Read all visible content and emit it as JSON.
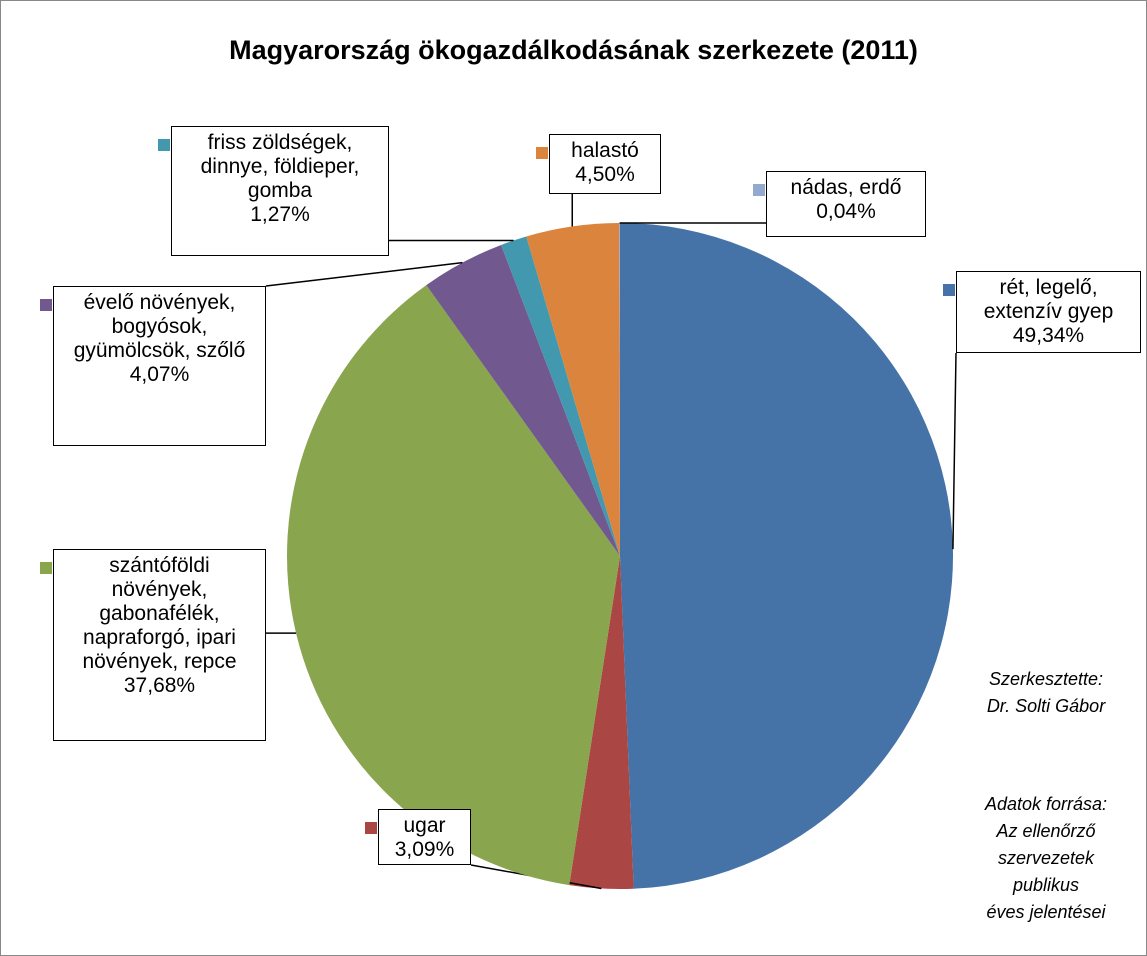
{
  "chart_data": {
    "type": "pie",
    "title": "Magyarország ökogazdálkodásának szerkezete (2011)",
    "categories": [
      "rét, legelő, extenzív gyep",
      "ugar",
      "szántóföldi növények, gabonafélék, napraforgó, ipari növények, repce",
      "évelő növények, bogyósok, gyümölcsök, szőlő",
      "friss zöldségek, dinnye, földieper, gomba",
      "halastó",
      "nádas, erdő"
    ],
    "values": [
      49.34,
      3.09,
      37.68,
      4.07,
      1.27,
      4.5,
      0.04
    ],
    "value_labels": [
      "49,34%",
      "3,09%",
      "37,68%",
      "4,07%",
      "1,27%",
      "4,50%",
      "0,04%"
    ],
    "colors": [
      "#4572a7",
      "#aa4643",
      "#89a54e",
      "#71588f",
      "#4198af",
      "#db843d",
      "#93a9cf"
    ],
    "annotations": [
      [
        "Szerkesztette:",
        "Dr. Solti Gábor"
      ],
      [
        "Adatok forrása:",
        "Az ellenőrző",
        "szervezetek",
        "publikus",
        "éves jelentései"
      ]
    ]
  }
}
